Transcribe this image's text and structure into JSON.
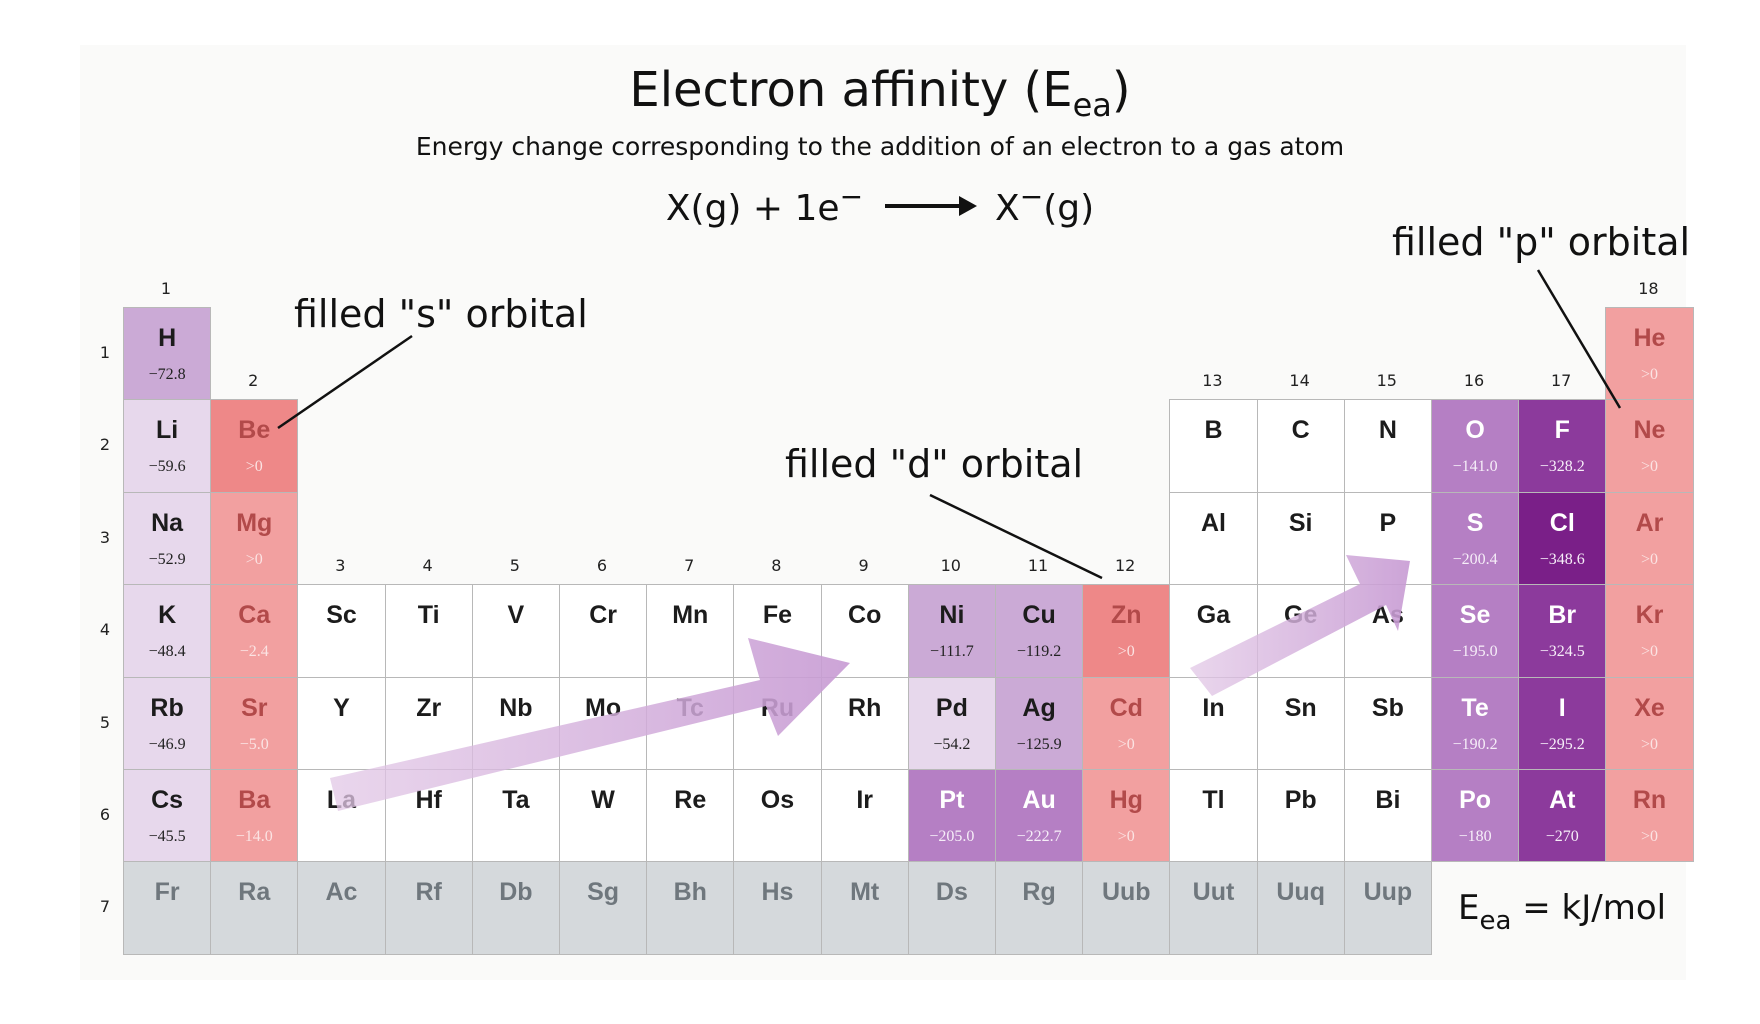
{
  "title": {
    "text": "Electron affinity  (E",
    "sub": "ea",
    "close": ")"
  },
  "subtitle": "Energy change corresponding to the addition of an electron to a gas atom",
  "equation": {
    "left": "X(g) + 1e",
    "sup": "−",
    "product": "X",
    "product_sup": "−",
    "product_tail": "(g)"
  },
  "annotations": {
    "s": "filled \"s\" orbital",
    "d": "filled \"d\" orbital",
    "p": "filled \"p\" orbital"
  },
  "unit": {
    "main": "E",
    "sub": "ea",
    "tail": " = kJ/mol"
  },
  "colors": {
    "white": "#ffffff",
    "lav_light": "#e7d8ec",
    "lav_mid": "#cbaad6",
    "purple_mid": "#b57fc4",
    "purple_dark": "#8c3a9c",
    "purple_darkest": "#7a1f88",
    "pink": "#f2a0a0",
    "pink_strong": "#ee8888",
    "grey": "#d5d9dc"
  },
  "group_labels": [
    "1",
    "2",
    "3",
    "4",
    "5",
    "6",
    "7",
    "8",
    "9",
    "10",
    "11",
    "12",
    "13",
    "14",
    "15",
    "16",
    "17",
    "18"
  ],
  "period_labels": [
    "1",
    "2",
    "3",
    "4",
    "5",
    "6",
    "7"
  ],
  "elements": [
    {
      "s": "H",
      "v": "−72.8",
      "g": 1,
      "p": 1,
      "c": "lav_mid"
    },
    {
      "s": "He",
      "v": ">0",
      "g": 18,
      "p": 1,
      "c": "pink"
    },
    {
      "s": "Li",
      "v": "−59.6",
      "g": 1,
      "p": 2,
      "c": "lav_light"
    },
    {
      "s": "Be",
      "v": ">0",
      "g": 2,
      "p": 2,
      "c": "pink_strong"
    },
    {
      "s": "B",
      "v": "",
      "g": 13,
      "p": 2,
      "c": "white"
    },
    {
      "s": "C",
      "v": "",
      "g": 14,
      "p": 2,
      "c": "white"
    },
    {
      "s": "N",
      "v": "",
      "g": 15,
      "p": 2,
      "c": "white"
    },
    {
      "s": "O",
      "v": "−141.0",
      "g": 16,
      "p": 2,
      "c": "purple_mid"
    },
    {
      "s": "F",
      "v": "−328.2",
      "g": 17,
      "p": 2,
      "c": "purple_dark"
    },
    {
      "s": "Ne",
      "v": ">0",
      "g": 18,
      "p": 2,
      "c": "pink"
    },
    {
      "s": "Na",
      "v": "−52.9",
      "g": 1,
      "p": 3,
      "c": "lav_light"
    },
    {
      "s": "Mg",
      "v": ">0",
      "g": 2,
      "p": 3,
      "c": "pink"
    },
    {
      "s": "Al",
      "v": "",
      "g": 13,
      "p": 3,
      "c": "white"
    },
    {
      "s": "Si",
      "v": "",
      "g": 14,
      "p": 3,
      "c": "white"
    },
    {
      "s": "P",
      "v": "",
      "g": 15,
      "p": 3,
      "c": "white"
    },
    {
      "s": "S",
      "v": "−200.4",
      "g": 16,
      "p": 3,
      "c": "purple_mid"
    },
    {
      "s": "Cl",
      "v": "−348.6",
      "g": 17,
      "p": 3,
      "c": "purple_darkest"
    },
    {
      "s": "Ar",
      "v": ">0",
      "g": 18,
      "p": 3,
      "c": "pink"
    },
    {
      "s": "K",
      "v": "−48.4",
      "g": 1,
      "p": 4,
      "c": "lav_light"
    },
    {
      "s": "Ca",
      "v": "−2.4",
      "g": 2,
      "p": 4,
      "c": "pink"
    },
    {
      "s": "Sc",
      "v": "",
      "g": 3,
      "p": 4,
      "c": "white"
    },
    {
      "s": "Ti",
      "v": "",
      "g": 4,
      "p": 4,
      "c": "white"
    },
    {
      "s": "V",
      "v": "",
      "g": 5,
      "p": 4,
      "c": "white"
    },
    {
      "s": "Cr",
      "v": "",
      "g": 6,
      "p": 4,
      "c": "white"
    },
    {
      "s": "Mn",
      "v": "",
      "g": 7,
      "p": 4,
      "c": "white"
    },
    {
      "s": "Fe",
      "v": "",
      "g": 8,
      "p": 4,
      "c": "white"
    },
    {
      "s": "Co",
      "v": "",
      "g": 9,
      "p": 4,
      "c": "white"
    },
    {
      "s": "Ni",
      "v": "−111.7",
      "g": 10,
      "p": 4,
      "c": "lav_mid"
    },
    {
      "s": "Cu",
      "v": "−119.2",
      "g": 11,
      "p": 4,
      "c": "lav_mid"
    },
    {
      "s": "Zn",
      "v": ">0",
      "g": 12,
      "p": 4,
      "c": "pink_strong"
    },
    {
      "s": "Ga",
      "v": "",
      "g": 13,
      "p": 4,
      "c": "white"
    },
    {
      "s": "Ge",
      "v": "",
      "g": 14,
      "p": 4,
      "c": "white"
    },
    {
      "s": "As",
      "v": "",
      "g": 15,
      "p": 4,
      "c": "white"
    },
    {
      "s": "Se",
      "v": "−195.0",
      "g": 16,
      "p": 4,
      "c": "purple_mid"
    },
    {
      "s": "Br",
      "v": "−324.5",
      "g": 17,
      "p": 4,
      "c": "purple_dark"
    },
    {
      "s": "Kr",
      "v": ">0",
      "g": 18,
      "p": 4,
      "c": "pink"
    },
    {
      "s": "Rb",
      "v": "−46.9",
      "g": 1,
      "p": 5,
      "c": "lav_light"
    },
    {
      "s": "Sr",
      "v": "−5.0",
      "g": 2,
      "p": 5,
      "c": "pink"
    },
    {
      "s": "Y",
      "v": "",
      "g": 3,
      "p": 5,
      "c": "white"
    },
    {
      "s": "Zr",
      "v": "",
      "g": 4,
      "p": 5,
      "c": "white"
    },
    {
      "s": "Nb",
      "v": "",
      "g": 5,
      "p": 5,
      "c": "white"
    },
    {
      "s": "Mo",
      "v": "",
      "g": 6,
      "p": 5,
      "c": "white"
    },
    {
      "s": "Tc",
      "v": "",
      "g": 7,
      "p": 5,
      "c": "white"
    },
    {
      "s": "Ru",
      "v": "",
      "g": 8,
      "p": 5,
      "c": "white"
    },
    {
      "s": "Rh",
      "v": "",
      "g": 9,
      "p": 5,
      "c": "white"
    },
    {
      "s": "Pd",
      "v": "−54.2",
      "g": 10,
      "p": 5,
      "c": "lav_light"
    },
    {
      "s": "Ag",
      "v": "−125.9",
      "g": 11,
      "p": 5,
      "c": "lav_mid"
    },
    {
      "s": "Cd",
      "v": ">0",
      "g": 12,
      "p": 5,
      "c": "pink"
    },
    {
      "s": "In",
      "v": "",
      "g": 13,
      "p": 5,
      "c": "white"
    },
    {
      "s": "Sn",
      "v": "",
      "g": 14,
      "p": 5,
      "c": "white"
    },
    {
      "s": "Sb",
      "v": "",
      "g": 15,
      "p": 5,
      "c": "white"
    },
    {
      "s": "Te",
      "v": "−190.2",
      "g": 16,
      "p": 5,
      "c": "purple_mid"
    },
    {
      "s": "I",
      "v": "−295.2",
      "g": 17,
      "p": 5,
      "c": "purple_dark"
    },
    {
      "s": "Xe",
      "v": ">0",
      "g": 18,
      "p": 5,
      "c": "pink"
    },
    {
      "s": "Cs",
      "v": "−45.5",
      "g": 1,
      "p": 6,
      "c": "lav_light"
    },
    {
      "s": "Ba",
      "v": "−14.0",
      "g": 2,
      "p": 6,
      "c": "pink"
    },
    {
      "s": "La",
      "v": "",
      "g": 3,
      "p": 6,
      "c": "white"
    },
    {
      "s": "Hf",
      "v": "",
      "g": 4,
      "p": 6,
      "c": "white"
    },
    {
      "s": "Ta",
      "v": "",
      "g": 5,
      "p": 6,
      "c": "white"
    },
    {
      "s": "W",
      "v": "",
      "g": 6,
      "p": 6,
      "c": "white"
    },
    {
      "s": "Re",
      "v": "",
      "g": 7,
      "p": 6,
      "c": "white"
    },
    {
      "s": "Os",
      "v": "",
      "g": 8,
      "p": 6,
      "c": "white"
    },
    {
      "s": "Ir",
      "v": "",
      "g": 9,
      "p": 6,
      "c": "white"
    },
    {
      "s": "Pt",
      "v": "−205.0",
      "g": 10,
      "p": 6,
      "c": "purple_mid"
    },
    {
      "s": "Au",
      "v": "−222.7",
      "g": 11,
      "p": 6,
      "c": "purple_mid"
    },
    {
      "s": "Hg",
      "v": ">0",
      "g": 12,
      "p": 6,
      "c": "pink"
    },
    {
      "s": "Tl",
      "v": "",
      "g": 13,
      "p": 6,
      "c": "white"
    },
    {
      "s": "Pb",
      "v": "",
      "g": 14,
      "p": 6,
      "c": "white"
    },
    {
      "s": "Bi",
      "v": "",
      "g": 15,
      "p": 6,
      "c": "white"
    },
    {
      "s": "Po",
      "v": "−180",
      "g": 16,
      "p": 6,
      "c": "purple_mid"
    },
    {
      "s": "At",
      "v": "−270",
      "g": 17,
      "p": 6,
      "c": "purple_dark"
    },
    {
      "s": "Rn",
      "v": ">0",
      "g": 18,
      "p": 6,
      "c": "pink"
    },
    {
      "s": "Fr",
      "v": "",
      "g": 1,
      "p": 7,
      "c": "grey"
    },
    {
      "s": "Ra",
      "v": "",
      "g": 2,
      "p": 7,
      "c": "grey"
    },
    {
      "s": "Ac",
      "v": "",
      "g": 3,
      "p": 7,
      "c": "grey"
    },
    {
      "s": "Rf",
      "v": "",
      "g": 4,
      "p": 7,
      "c": "grey"
    },
    {
      "s": "Db",
      "v": "",
      "g": 5,
      "p": 7,
      "c": "grey"
    },
    {
      "s": "Sg",
      "v": "",
      "g": 6,
      "p": 7,
      "c": "grey"
    },
    {
      "s": "Bh",
      "v": "",
      "g": 7,
      "p": 7,
      "c": "grey"
    },
    {
      "s": "Hs",
      "v": "",
      "g": 8,
      "p": 7,
      "c": "grey"
    },
    {
      "s": "Mt",
      "v": "",
      "g": 9,
      "p": 7,
      "c": "grey"
    },
    {
      "s": "Ds",
      "v": "",
      "g": 10,
      "p": 7,
      "c": "grey"
    },
    {
      "s": "Rg",
      "v": "",
      "g": 11,
      "p": 7,
      "c": "grey"
    },
    {
      "s": "Uub",
      "v": "",
      "g": 12,
      "p": 7,
      "c": "grey"
    },
    {
      "s": "Uut",
      "v": "",
      "g": 13,
      "p": 7,
      "c": "grey"
    },
    {
      "s": "Uuq",
      "v": "",
      "g": 14,
      "p": 7,
      "c": "grey"
    },
    {
      "s": "Uup",
      "v": "",
      "g": 15,
      "p": 7,
      "c": "grey"
    }
  ]
}
